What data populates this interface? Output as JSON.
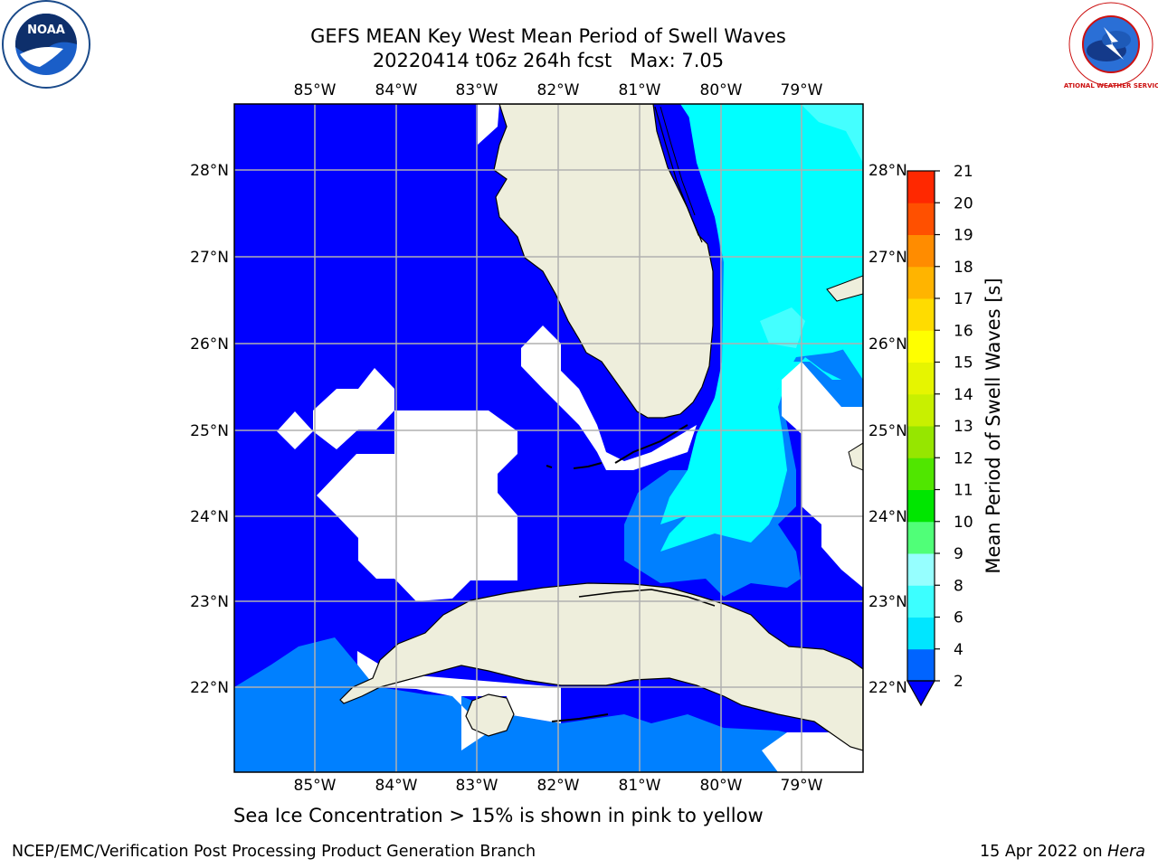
{
  "title_line1": "GEFS MEAN Key West Mean Period of Swell Waves",
  "title_line2": "20220414 t06z 264h fcst   Max: 7.05",
  "lon_ticks": [
    "85°W",
    "84°W",
    "83°W",
    "82°W",
    "81°W",
    "80°W",
    "79°W"
  ],
  "lat_ticks": [
    "28°N",
    "27°N",
    "26°N",
    "25°N",
    "24°N",
    "23°N",
    "22°N"
  ],
  "colorbar": {
    "label": "Mean Period of Swell Waves [s]",
    "ticks": [
      "2",
      "4",
      "6",
      "8",
      "9",
      "10",
      "11",
      "12",
      "13",
      "14",
      "15",
      "16",
      "17",
      "18",
      "19",
      "20",
      "21"
    ],
    "colors": [
      "#0064ff",
      "#00e6ff",
      "#3cffff",
      "#96ffff",
      "#50ff78",
      "#00e600",
      "#50e600",
      "#96e600",
      "#c8f000",
      "#e6f500",
      "#ffff00",
      "#ffdc00",
      "#ffb400",
      "#ff8c00",
      "#ff5000",
      "#ff2800",
      "#ff0000"
    ],
    "under_color": "#0000ff"
  },
  "colors": {
    "period_2_4": "#0000ff",
    "period_4_6": "#0080ff",
    "period_6_8": "#00ffff",
    "period_8_9": "#44ffff",
    "land": "#eeeedc",
    "grid": "#b0b0b0"
  },
  "note": "Sea Ice Concentration > 15% is shown in pink to yellow",
  "footer_left": "NCEP/EMC/Verification Post Processing Product Generation Branch",
  "footer_date": "15 Apr 2022 on ",
  "footer_host": "Hera",
  "logos": {
    "noaa_text": "NOAA",
    "nws_text": "NATIONAL WEATHER SERVICE"
  }
}
